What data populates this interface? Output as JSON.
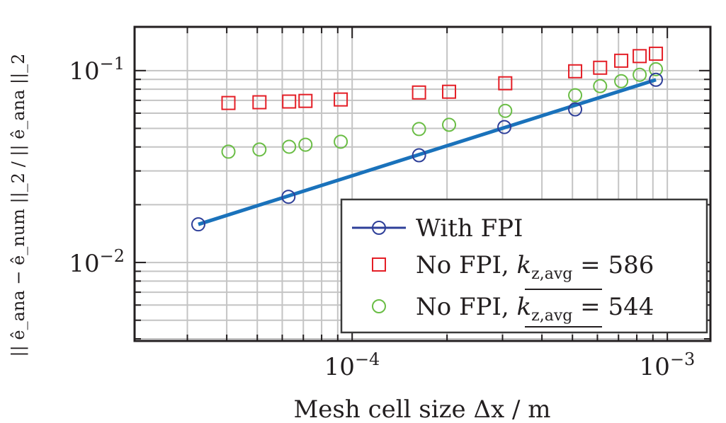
{
  "chart_data": {
    "type": "scatter",
    "xscale": "log",
    "yscale": "log",
    "xlim": [
      2.04e-05,
      0.00137
    ],
    "ylim": [
      0.0039,
      0.169
    ],
    "grid": true,
    "xlabel": "Mesh cell size Δx / m",
    "ylabel": "|| ê_ana − ê_num ||_2 / || ê_ana ||_2",
    "ylabel_parts": {
      "n1": "|| ",
      "e": "e",
      "ana": "ana",
      "minus": " − ",
      "num": "num",
      "sep": " ||",
      "two": "2",
      "slash": "/|| "
    },
    "x_ticks": [
      {
        "value": 0.0001,
        "base": "10",
        "exp": "−4"
      },
      {
        "value": 0.001,
        "base": "10",
        "exp": "−3"
      }
    ],
    "y_ticks": [
      {
        "value": 0.1,
        "base": "10",
        "exp": "−1"
      },
      {
        "value": 0.01,
        "base": "10",
        "exp": "−2"
      }
    ],
    "legend_position": "bottom-right",
    "series": [
      {
        "name": "With FPI",
        "color": "#2e3f99",
        "line_color": "#1a72bb",
        "marker": "circle",
        "fit_line": true,
        "x": [
          3.25e-05,
          6.28e-05,
          0.000163,
          0.000304,
          0.00051,
          0.00092
        ],
        "y": [
          0.0158,
          0.022,
          0.0362,
          0.0508,
          0.0628,
          0.0896
        ]
      },
      {
        "name": "No FPI, k_z,avg = 586",
        "legend": {
          "prefix": "No FPI, ",
          "k": "k",
          "sub": "z,avg",
          "suffix": " = 586"
        },
        "color": "#e41e26",
        "marker": "square",
        "x": [
          4.05e-05,
          5.08e-05,
          6.31e-05,
          7.11e-05,
          9.2e-05,
          0.000163,
          0.000203,
          0.000306,
          0.00051,
          0.000612,
          0.000714,
          0.000817,
          0.00092
        ],
        "y": [
          0.0678,
          0.0684,
          0.069,
          0.0695,
          0.0707,
          0.0769,
          0.0776,
          0.0859,
          0.0992,
          0.1035,
          0.1126,
          0.119,
          0.1225
        ]
      },
      {
        "name": "No FPI, overline(k_z,avg) = 544",
        "legend": {
          "prefix": "No FPI, ",
          "k": "k",
          "sub": "z,avg",
          "suffix": " = 544"
        },
        "color": "#6abd45",
        "marker": "circle",
        "x": [
          4.05e-05,
          5.08e-05,
          6.31e-05,
          7.11e-05,
          9.2e-05,
          0.000163,
          0.000203,
          0.000306,
          0.00051,
          0.000612,
          0.000714,
          0.000817,
          0.00092
        ],
        "y": [
          0.0378,
          0.0388,
          0.0401,
          0.0411,
          0.0426,
          0.0496,
          0.0522,
          0.0617,
          0.0744,
          0.083,
          0.0881,
          0.0951,
          0.1017
        ]
      }
    ]
  }
}
